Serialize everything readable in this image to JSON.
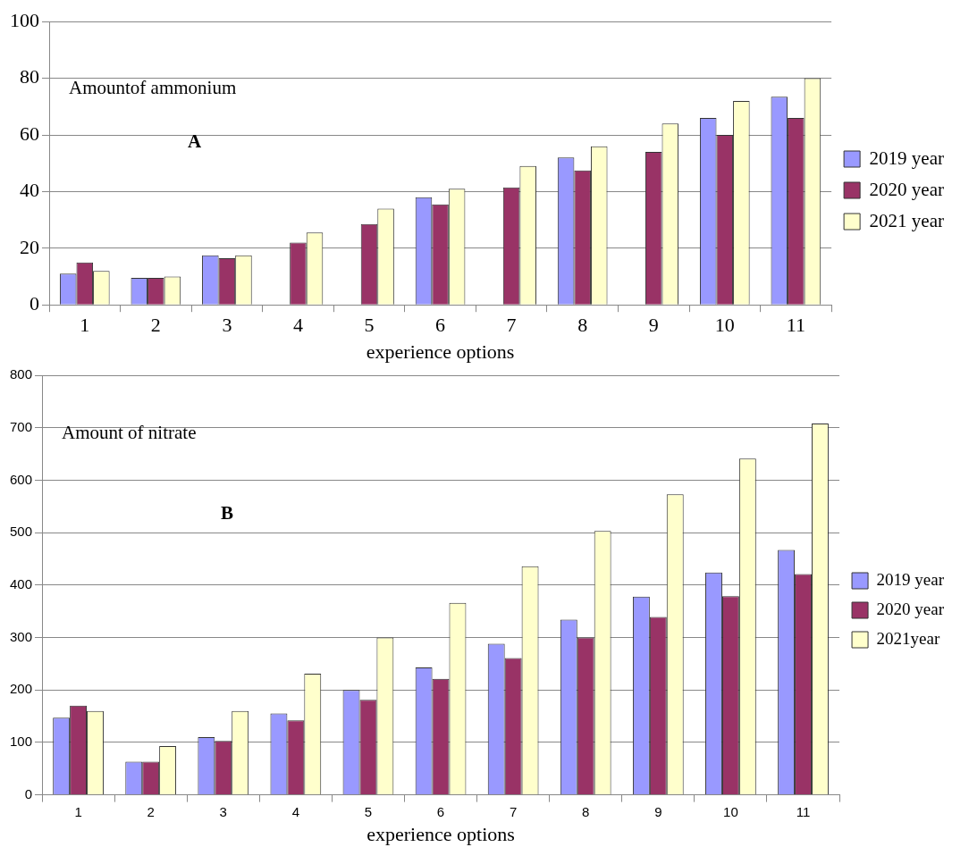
{
  "chart_data": [
    {
      "type": "bar",
      "xlabel": "experience options",
      "annotations": [
        "Amountof ammonium",
        "A"
      ],
      "categories": [
        "1",
        "2",
        "3",
        "4",
        "5",
        "6",
        "7",
        "8",
        "9",
        "10",
        "11"
      ],
      "series": [
        {
          "name": "2019 year",
          "color": "#9999ff",
          "values": [
            11,
            9.5,
            17.5,
            null,
            null,
            38,
            null,
            52,
            null,
            66,
            73.5
          ]
        },
        {
          "name": "2020 year",
          "color": "#993366",
          "values": [
            15,
            9.5,
            16.5,
            22,
            28.5,
            35.5,
            41.5,
            47.5,
            54,
            60,
            66
          ]
        },
        {
          "name": "2021 year",
          "color": "#ffffcc",
          "values": [
            12,
            10,
            17.5,
            25.5,
            34,
            41,
            49,
            56,
            64,
            72,
            80
          ]
        }
      ],
      "ylim": [
        0,
        100
      ],
      "yticks": [
        0,
        20,
        40,
        60,
        80,
        100
      ],
      "grid": "y",
      "legend": "right"
    },
    {
      "type": "bar",
      "xlabel": "experience options",
      "annotations": [
        "Amount of nitrate",
        "B"
      ],
      "categories": [
        "1",
        "2",
        "3",
        "4",
        "5",
        "6",
        "7",
        "8",
        "9",
        "10",
        "11"
      ],
      "series": [
        {
          "name": "2019 year",
          "color": "#9999ff",
          "values": [
            147,
            63,
            110,
            155,
            200,
            243,
            288,
            334,
            378,
            424,
            467
          ]
        },
        {
          "name": "2020 year",
          "color": "#993366",
          "values": [
            170,
            63,
            103,
            142,
            181,
            221,
            261,
            300,
            339,
            379,
            421
          ]
        },
        {
          "name": "2021year",
          "color": "#ffffcc",
          "values": [
            160,
            93,
            160,
            231,
            300,
            366,
            436,
            503,
            573,
            641,
            708
          ]
        }
      ],
      "ylim": [
        0,
        800
      ],
      "yticks": [
        0,
        100,
        200,
        300,
        400,
        500,
        600,
        700,
        800
      ],
      "grid": "y",
      "legend": "right"
    }
  ]
}
